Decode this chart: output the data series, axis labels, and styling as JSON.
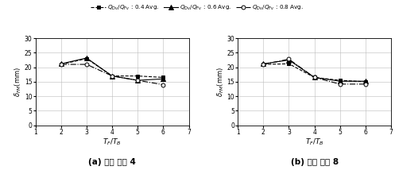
{
  "x": [
    2,
    3,
    4,
    5,
    6
  ],
  "subplot_a": {
    "series_04": [
      21.0,
      23.0,
      17.0,
      17.0,
      16.5
    ],
    "series_06": [
      21.2,
      23.2,
      17.0,
      15.5,
      16.0
    ],
    "series_08": [
      21.0,
      21.0,
      17.0,
      15.5,
      14.0
    ]
  },
  "subplot_b": {
    "series_04": [
      21.0,
      21.2,
      16.5,
      15.5,
      15.0
    ],
    "series_06": [
      21.2,
      22.5,
      16.5,
      15.2,
      15.2
    ],
    "series_08": [
      21.0,
      22.8,
      16.5,
      14.2,
      14.2
    ]
  },
  "legend_labels": [
    "$Q_{Dv}/Q_{Fv}$ : 0.4 Avg.",
    "$Q_{Dv}/Q_{Fv}$ : 0.6 Avg.",
    "$Q_{Dv}/Q_{Fv}$ : 0.8 Avg."
  ],
  "xlabel": "$T_F/T_B$",
  "ylabel": "$\\delta_{FM}$(mm)",
  "xlim": [
    1,
    7
  ],
  "ylim": [
    0,
    30
  ],
  "yticks": [
    0,
    5,
    10,
    15,
    20,
    25,
    30
  ],
  "xticks": [
    1,
    2,
    3,
    4,
    5,
    6,
    7
  ],
  "title_a": "(a) 변형 비율 4",
  "title_b": "(b) 변형 비율 8",
  "line_color": "black",
  "bg_color": "white",
  "grid_color": "#bbbbbb"
}
